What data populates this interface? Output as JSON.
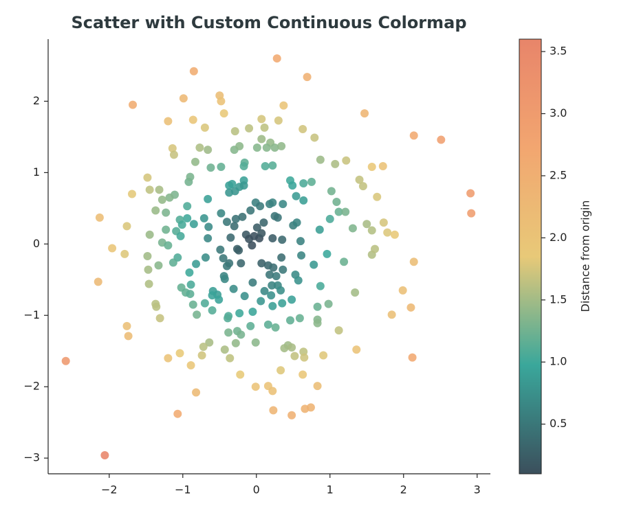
{
  "chart_data": {
    "type": "scatter",
    "title": "Scatter with Custom Continuous Colormap",
    "colorbar_label": "Distance from origin",
    "x": [
      -0.85,
      0.28,
      0.69,
      -1.68,
      -0.99,
      -0.5,
      -0.48,
      -0.44,
      0.37,
      -0.86,
      -0.7,
      -1.2,
      0.07,
      0.3,
      1.47,
      2.14,
      2.51,
      0.63,
      0.79,
      -0.29,
      -0.1,
      0.11,
      -1.14,
      -1.12,
      -0.77,
      -0.66,
      -0.3,
      -0.23,
      0.07,
      0.19,
      0.01,
      0.14,
      0.25,
      0.34,
      -0.83,
      -0.62,
      -0.48,
      -0.16,
      -0.17,
      0.12,
      0.22,
      0.87,
      1.07,
      1.22,
      1.57,
      1.72,
      -1.48,
      -0.92,
      -0.9,
      1.4,
      1.45,
      -1.45,
      -1.32,
      -1.69,
      -1.11,
      -1.18,
      -1.28,
      -0.66,
      -0.37,
      -0.33,
      -0.37,
      -0.29,
      -0.17,
      -0.17,
      -0.23,
      0.46,
      0.49,
      0.64,
      0.75,
      0.54,
      0.64,
      1.02,
      1.09,
      1.12,
      1.21,
      1.64,
      -2.13,
      -1.37,
      -1.23,
      -0.94,
      -0.94,
      -1.04,
      -1.01,
      -0.85,
      -0.71,
      -0.65,
      -0.48,
      -0.4,
      -0.3,
      -0.28,
      -0.19,
      -0.08,
      -0.01,
      0.05,
      0.18,
      0.22,
      0.36,
      0.25,
      0.29,
      0.5,
      0.55,
      0.86,
      1.0,
      1.31,
      1.5,
      1.57,
      1.73,
      1.78,
      1.88,
      -1.76,
      -1.45,
      -1.23,
      -1.09,
      -1.28,
      -1.2,
      -1.03,
      -0.66,
      -0.35,
      -0.14,
      -0.1,
      -0.03,
      0.04,
      0.07,
      -0.06,
      -0.26,
      -0.24,
      0.22,
      0.35,
      0.6,
      -1.96,
      -1.79,
      -1.48,
      -1.33,
      -1.07,
      -1.13,
      -0.69,
      -0.49,
      -0.45,
      -0.37,
      -0.4,
      -0.21,
      0.07,
      0.16,
      0.23,
      0.34,
      0.36,
      0.61,
      0.78,
      0.96,
      1.19,
      1.57,
      1.61,
      2.14,
      -1.47,
      -0.91,
      -0.82,
      -0.44,
      -0.43,
      0.18,
      0.27,
      0.21,
      0.29,
      0.53,
      0.57,
      0.87,
      -0.05,
      -2.15,
      -1.46,
      -1.02,
      -0.89,
      -0.96,
      -0.9,
      -0.59,
      -0.53,
      -0.6,
      -0.51,
      -0.7,
      -0.86,
      -0.31,
      -0.16,
      0.06,
      0.2,
      0.33,
      0.48,
      0.35,
      0.11,
      1.34,
      1.99,
      -1.37,
      -1.36,
      -0.05,
      -0.23,
      -0.38,
      -0.39,
      -0.6,
      -0.81,
      0.22,
      0.98,
      0.83,
      2.1,
      1.84,
      -1.31,
      0.46,
      0.59,
      0.83,
      0.83,
      -1.76,
      -1.74,
      -0.08,
      0.16,
      0.26,
      1.12,
      -0.38,
      -0.26,
      -0.21,
      -0.64,
      -0.72,
      -0.28,
      -0.01,
      0.43,
      0.38,
      0.48,
      0.64,
      -2.59,
      -1.04,
      -1.2,
      -0.74,
      -0.43,
      -0.36,
      0.52,
      0.65,
      0.91,
      1.36,
      2.12,
      -0.89,
      0.33,
      -0.22,
      0.63,
      -0.01,
      0.83,
      0.16,
      0.22,
      -0.82,
      0.23,
      0.48,
      0.66,
      0.74,
      -1.07,
      -2.06,
      2.91,
      2.92,
      0.1,
      0.01
    ],
    "y": [
      2.42,
      2.6,
      2.34,
      1.95,
      2.04,
      2.08,
      2.0,
      1.83,
      1.94,
      1.74,
      1.63,
      1.72,
      1.75,
      1.73,
      1.83,
      1.52,
      1.46,
      1.61,
      1.49,
      1.58,
      1.62,
      1.63,
      1.34,
      1.25,
      1.35,
      1.32,
      1.32,
      1.37,
      1.47,
      1.42,
      1.35,
      1.35,
      1.35,
      1.37,
      1.15,
      1.07,
      1.08,
      1.14,
      1.09,
      1.09,
      1.1,
      1.18,
      1.12,
      1.17,
      1.08,
      1.09,
      0.93,
      0.87,
      0.94,
      0.9,
      0.81,
      0.76,
      0.76,
      0.7,
      0.69,
      0.65,
      0.62,
      0.63,
      0.82,
      0.84,
      0.72,
      0.74,
      0.89,
      0.82,
      0.8,
      0.89,
      0.82,
      0.85,
      0.87,
      0.67,
      0.61,
      0.74,
      0.59,
      0.45,
      0.45,
      0.66,
      0.37,
      0.47,
      0.44,
      0.53,
      0.36,
      0.34,
      0.27,
      0.28,
      0.36,
      0.24,
      0.43,
      0.31,
      0.25,
      0.35,
      0.38,
      0.47,
      0.58,
      0.53,
      0.56,
      0.58,
      0.56,
      0.39,
      0.37,
      0.26,
      0.3,
      0.2,
      0.35,
      0.22,
      0.28,
      0.19,
      0.3,
      0.16,
      0.13,
      0.25,
      0.13,
      0.2,
      0.18,
      0.02,
      -0.02,
      0.11,
      0.08,
      0.09,
      0.13,
      0.07,
      0.11,
      0.08,
      0.15,
      -0.02,
      -0.07,
      -0.09,
      0.08,
      0.06,
      0.04,
      -0.06,
      -0.14,
      -0.17,
      -0.3,
      -0.19,
      -0.26,
      -0.19,
      -0.08,
      -0.2,
      -0.27,
      -0.31,
      -0.27,
      -0.27,
      -0.3,
      -0.33,
      -0.19,
      -0.36,
      -0.16,
      -0.29,
      -0.14,
      -0.25,
      -0.15,
      -0.07,
      -0.25,
      -0.36,
      -0.4,
      -0.28,
      -0.45,
      -0.49,
      -0.43,
      -0.45,
      -0.58,
      -0.58,
      -0.43,
      -0.51,
      -0.59,
      -0.54,
      -0.53,
      -0.56,
      -0.61,
      -0.57,
      -0.68,
      -0.7,
      -0.66,
      -0.71,
      -0.72,
      -0.78,
      -0.83,
      -0.85,
      -0.63,
      -0.73,
      -0.8,
      -0.72,
      -0.65,
      -0.78,
      -0.83,
      -0.66,
      -0.68,
      -0.65,
      -0.84,
      -0.88,
      -0.95,
      -0.97,
      -1.01,
      -1.04,
      -0.93,
      -0.99,
      -0.87,
      -0.84,
      -0.88,
      -0.89,
      -0.99,
      -1.04,
      -1.07,
      -1.04,
      -1.06,
      -1.11,
      -1.15,
      -1.29,
      -1.15,
      -1.13,
      -1.17,
      -1.21,
      -1.24,
      -1.22,
      -1.27,
      -1.38,
      -1.44,
      -1.39,
      -1.38,
      -1.42,
      -1.46,
      -1.45,
      -1.51,
      -1.64,
      -1.53,
      -1.6,
      -1.56,
      -1.48,
      -1.6,
      -1.57,
      -1.59,
      -1.56,
      -1.48,
      -1.59,
      -1.7,
      -1.77,
      -1.83,
      -1.83,
      -2.0,
      -1.99,
      -1.99,
      -2.06,
      -2.08,
      -2.33,
      -2.4,
      -2.31,
      -2.29,
      -2.38,
      -2.96,
      0.71,
      0.43,
      0.3,
      0.23
    ],
    "xlim": [
      -2.83,
      3.18
    ],
    "ylim": [
      -3.22,
      2.87
    ],
    "xticks": [
      {
        "value": -2,
        "label": "−2"
      },
      {
        "value": -1,
        "label": "−1"
      },
      0,
      1,
      2,
      3
    ],
    "yticks": [
      {
        "value": -3,
        "label": "−3"
      },
      {
        "value": -2,
        "label": "−2"
      },
      {
        "value": -1,
        "label": "−1"
      },
      0,
      1,
      2
    ],
    "clim": [
      0.1,
      3.6
    ],
    "cticks": [
      0.5,
      {
        "value": 1,
        "label": "1.0"
      },
      1.5,
      {
        "value": 2,
        "label": "2.0"
      },
      2.5,
      {
        "value": 3,
        "label": "3.0"
      },
      3.5
    ],
    "colormap": [
      "#3b4f5c",
      "#3aa79b",
      "#e8c978",
      "#f2a670",
      "#e8856a"
    ]
  }
}
